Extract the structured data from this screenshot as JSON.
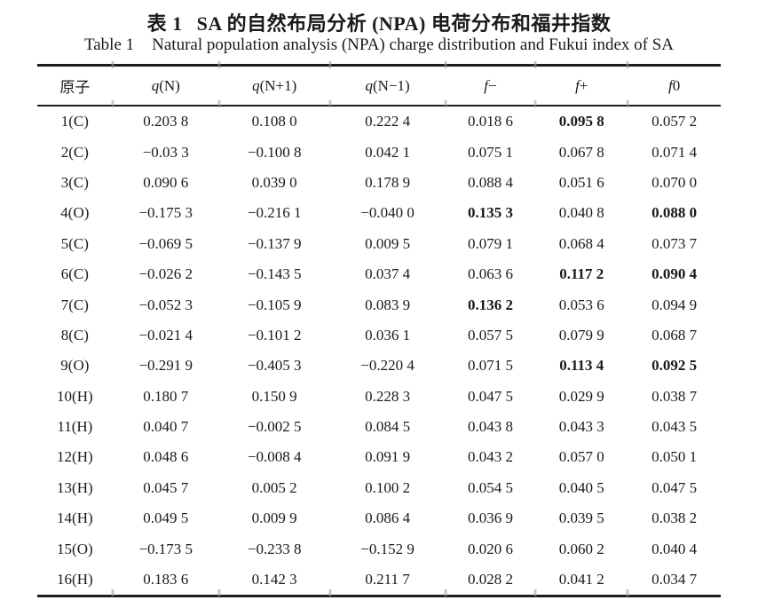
{
  "caption_zh": {
    "label": "表 1",
    "text": "SA 的自然布局分析 (NPA) 电荷分布和福井指数"
  },
  "caption_en": {
    "label": "Table 1",
    "text": "Natural population analysis (NPA) charge distribution and Fukui index of SA"
  },
  "table": {
    "columns": [
      {
        "key": "atom",
        "italic": "",
        "rest": "原子"
      },
      {
        "key": "q-n",
        "italic": "q",
        "rest": "(N)"
      },
      {
        "key": "q-n-plus1",
        "italic": "q",
        "rest": "(N+1)"
      },
      {
        "key": "q-n-minus1",
        "italic": "q",
        "rest": "(N−1)"
      },
      {
        "key": "f-minus",
        "italic": "f",
        "rest": "−"
      },
      {
        "key": "f-plus",
        "italic": "f",
        "rest": "+"
      },
      {
        "key": "f-zero",
        "italic": "f",
        "rest": "0"
      }
    ],
    "rows": [
      {
        "atom": "1(C)",
        "values": [
          "0.203 8",
          "0.108 0",
          "0.222 4",
          "0.018 6",
          "0.095 8",
          "0.057 2"
        ],
        "bold": [
          4
        ]
      },
      {
        "atom": "2(C)",
        "values": [
          "−0.03 3",
          "−0.100 8",
          "0.042 1",
          "0.075 1",
          "0.067 8",
          "0.071 4"
        ],
        "bold": []
      },
      {
        "atom": "3(C)",
        "values": [
          "0.090 6",
          "0.039 0",
          "0.178 9",
          "0.088 4",
          "0.051 6",
          "0.070 0"
        ],
        "bold": []
      },
      {
        "atom": "4(O)",
        "values": [
          "−0.175 3",
          "−0.216 1",
          "−0.040 0",
          "0.135 3",
          "0.040 8",
          "0.088 0"
        ],
        "bold": [
          3,
          5
        ]
      },
      {
        "atom": "5(C)",
        "values": [
          "−0.069 5",
          "−0.137 9",
          "0.009 5",
          "0.079 1",
          "0.068 4",
          "0.073 7"
        ],
        "bold": []
      },
      {
        "atom": "6(C)",
        "values": [
          "−0.026 2",
          "−0.143 5",
          "0.037 4",
          "0.063 6",
          "0.117 2",
          "0.090 4"
        ],
        "bold": [
          4,
          5
        ]
      },
      {
        "atom": "7(C)",
        "values": [
          "−0.052 3",
          "−0.105 9",
          "0.083 9",
          "0.136 2",
          "0.053 6",
          "0.094 9"
        ],
        "bold": [
          3
        ]
      },
      {
        "atom": "8(C)",
        "values": [
          "−0.021 4",
          "−0.101 2",
          "0.036 1",
          "0.057 5",
          "0.079 9",
          "0.068 7"
        ],
        "bold": []
      },
      {
        "atom": "9(O)",
        "values": [
          "−0.291 9",
          "−0.405 3",
          "−0.220 4",
          "0.071 5",
          "0.113 4",
          "0.092 5"
        ],
        "bold": [
          4,
          5
        ]
      },
      {
        "atom": "10(H)",
        "values": [
          "0.180 7",
          "0.150 9",
          "0.228 3",
          "0.047 5",
          "0.029 9",
          "0.038 7"
        ],
        "bold": []
      },
      {
        "atom": "11(H)",
        "values": [
          "0.040 7",
          "−0.002 5",
          "0.084 5",
          "0.043 8",
          "0.043 3",
          "0.043 5"
        ],
        "bold": []
      },
      {
        "atom": "12(H)",
        "values": [
          "0.048 6",
          "−0.008 4",
          "0.091 9",
          "0.043 2",
          "0.057 0",
          "0.050 1"
        ],
        "bold": []
      },
      {
        "atom": "13(H)",
        "values": [
          "0.045 7",
          "0.005 2",
          "0.100 2",
          "0.054 5",
          "0.040 5",
          "0.047 5"
        ],
        "bold": []
      },
      {
        "atom": "14(H)",
        "values": [
          "0.049 5",
          "0.009 9",
          "0.086 4",
          "0.036 9",
          "0.039 5",
          "0.038 2"
        ],
        "bold": []
      },
      {
        "atom": "15(O)",
        "values": [
          "−0.173 5",
          "−0.233 8",
          "−0.152 9",
          "0.020 6",
          "0.060 2",
          "0.040 4"
        ],
        "bold": []
      },
      {
        "atom": "16(H)",
        "values": [
          "0.183 6",
          "0.142 3",
          "0.211 7",
          "0.028 2",
          "0.041 2",
          "0.034 7"
        ],
        "bold": []
      }
    ]
  }
}
